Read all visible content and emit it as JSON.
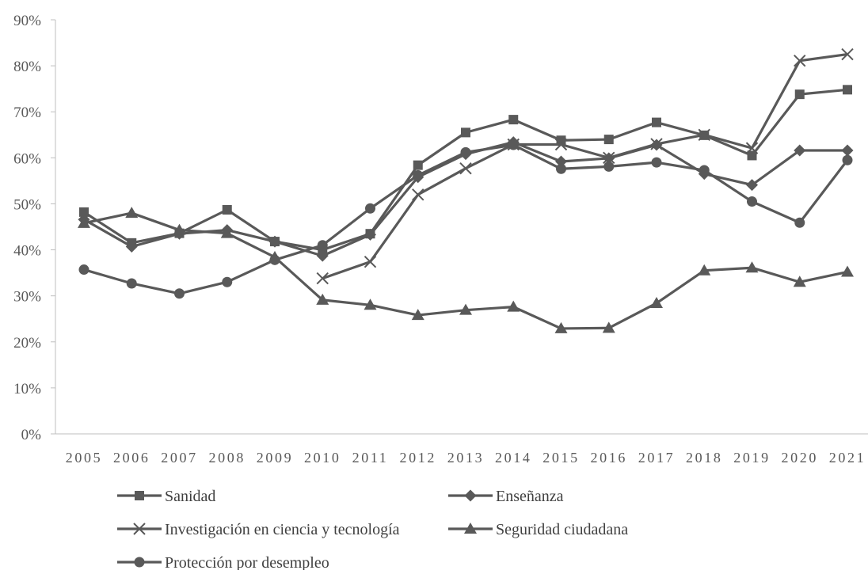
{
  "chart_data": {
    "type": "line",
    "title": "",
    "xlabel": "",
    "ylabel": "",
    "x": [
      "2005",
      "2006",
      "2007",
      "2008",
      "2009",
      "2010",
      "2011",
      "2012",
      "2013",
      "2014",
      "2015",
      "2016",
      "2017",
      "2018",
      "2019",
      "2020",
      "2021"
    ],
    "ylim": [
      0,
      0.9
    ],
    "yticks": [
      "0%",
      "10%",
      "20%",
      "30%",
      "40%",
      "50%",
      "60%",
      "70%",
      "80%",
      "90%"
    ],
    "grid": false,
    "legend_position": "bottom",
    "series_color": "#595959",
    "series": [
      {
        "name": "Sanidad",
        "marker": "square",
        "values": [
          0.482,
          0.415,
          0.436,
          0.487,
          0.418,
          0.4,
          0.435,
          0.584,
          0.655,
          0.683,
          0.638,
          0.64,
          0.677,
          0.649,
          0.605,
          0.738,
          0.748
        ]
      },
      {
        "name": "Enseñanza",
        "marker": "diamond",
        "values": [
          0.466,
          0.407,
          0.435,
          0.443,
          0.418,
          0.387,
          0.433,
          0.558,
          0.608,
          0.634,
          0.592,
          0.599,
          0.628,
          0.565,
          0.541,
          0.616,
          0.616
        ]
      },
      {
        "name": "Investigación en ciencia y tecnología",
        "marker": "x",
        "values": [
          null,
          null,
          null,
          null,
          null,
          0.338,
          0.374,
          0.52,
          0.577,
          0.629,
          0.629,
          0.6,
          0.63,
          0.65,
          0.621,
          0.811,
          0.825
        ]
      },
      {
        "name": "Seguridad ciudadana",
        "marker": "triangle",
        "values": [
          0.458,
          0.48,
          0.443,
          0.436,
          0.384,
          0.291,
          0.28,
          0.258,
          0.269,
          0.276,
          0.229,
          0.23,
          0.284,
          0.355,
          0.361,
          0.33,
          0.352
        ]
      },
      {
        "name": "Protección por desempleo",
        "marker": "circle",
        "values": [
          0.357,
          0.327,
          0.305,
          0.33,
          0.378,
          0.41,
          0.49,
          0.562,
          0.612,
          0.628,
          0.576,
          0.581,
          0.59,
          0.573,
          0.505,
          0.459,
          0.595
        ]
      }
    ]
  }
}
